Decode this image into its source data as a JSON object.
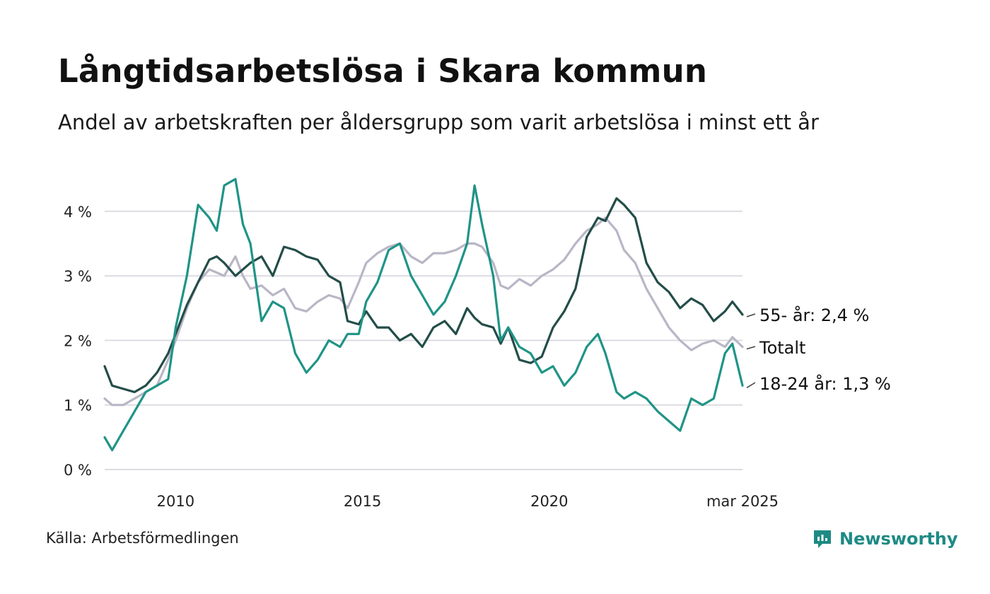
{
  "title": "Långtidsarbetslösa i Skara kommun",
  "subtitle": "Andel av arbetskraften per åldersgrupp som varit arbetslösa i minst ett år",
  "source": "Källa: Arbetsförmedlingen",
  "brand": {
    "name": "Newsworthy",
    "icon": "newsworthy-logo-icon",
    "color": "#1e8a84"
  },
  "chart_data": {
    "type": "line",
    "x_range": [
      2008.1,
      2025.17
    ],
    "ylim": [
      0,
      4.7
    ],
    "y_ticks": [
      {
        "value": 0,
        "label": "0 %"
      },
      {
        "value": 1,
        "label": "1 %"
      },
      {
        "value": 2,
        "label": "2 %"
      },
      {
        "value": 3,
        "label": "3 %"
      },
      {
        "value": 4,
        "label": "4 %"
      }
    ],
    "x_ticks": [
      {
        "value": 2010,
        "label": "2010"
      },
      {
        "value": 2015,
        "label": "2015"
      },
      {
        "value": 2020,
        "label": "2020"
      },
      {
        "value": 2025.17,
        "label": "mar 2025"
      }
    ],
    "grid": "horizontal",
    "series": [
      {
        "key": "totalt",
        "name": "Totalt",
        "color": "#b9b6c6",
        "points": [
          [
            2008.1,
            1.1
          ],
          [
            2008.3,
            1.0
          ],
          [
            2008.6,
            1.0
          ],
          [
            2008.9,
            1.1
          ],
          [
            2009.2,
            1.2
          ],
          [
            2009.5,
            1.3
          ],
          [
            2009.8,
            1.7
          ],
          [
            2010.0,
            2.0
          ],
          [
            2010.3,
            2.5
          ],
          [
            2010.6,
            2.9
          ],
          [
            2010.9,
            3.1
          ],
          [
            2011.1,
            3.05
          ],
          [
            2011.3,
            3.0
          ],
          [
            2011.6,
            3.3
          ],
          [
            2011.8,
            3.0
          ],
          [
            2012.0,
            2.8
          ],
          [
            2012.3,
            2.85
          ],
          [
            2012.6,
            2.7
          ],
          [
            2012.9,
            2.8
          ],
          [
            2013.2,
            2.5
          ],
          [
            2013.5,
            2.45
          ],
          [
            2013.8,
            2.6
          ],
          [
            2014.1,
            2.7
          ],
          [
            2014.4,
            2.65
          ],
          [
            2014.6,
            2.5
          ],
          [
            2014.9,
            2.9
          ],
          [
            2015.1,
            3.2
          ],
          [
            2015.4,
            3.35
          ],
          [
            2015.7,
            3.45
          ],
          [
            2016.0,
            3.5
          ],
          [
            2016.3,
            3.3
          ],
          [
            2016.6,
            3.2
          ],
          [
            2016.9,
            3.35
          ],
          [
            2017.2,
            3.35
          ],
          [
            2017.5,
            3.4
          ],
          [
            2017.8,
            3.5
          ],
          [
            2018.0,
            3.5
          ],
          [
            2018.2,
            3.45
          ],
          [
            2018.5,
            3.2
          ],
          [
            2018.7,
            2.85
          ],
          [
            2018.9,
            2.8
          ],
          [
            2019.2,
            2.95
          ],
          [
            2019.5,
            2.85
          ],
          [
            2019.8,
            3.0
          ],
          [
            2020.1,
            3.1
          ],
          [
            2020.4,
            3.25
          ],
          [
            2020.7,
            3.5
          ],
          [
            2021.0,
            3.7
          ],
          [
            2021.3,
            3.8
          ],
          [
            2021.5,
            3.9
          ],
          [
            2021.8,
            3.7
          ],
          [
            2022.0,
            3.4
          ],
          [
            2022.3,
            3.2
          ],
          [
            2022.6,
            2.8
          ],
          [
            2022.9,
            2.5
          ],
          [
            2023.2,
            2.2
          ],
          [
            2023.5,
            2.0
          ],
          [
            2023.8,
            1.85
          ],
          [
            2024.1,
            1.95
          ],
          [
            2024.4,
            2.0
          ],
          [
            2024.7,
            1.9
          ],
          [
            2024.9,
            2.05
          ],
          [
            2025.17,
            1.9
          ]
        ]
      },
      {
        "key": "age55",
        "name": "55- år",
        "color": "#234d48",
        "points": [
          [
            2008.1,
            1.6
          ],
          [
            2008.3,
            1.3
          ],
          [
            2008.6,
            1.25
          ],
          [
            2008.9,
            1.2
          ],
          [
            2009.2,
            1.3
          ],
          [
            2009.5,
            1.5
          ],
          [
            2009.8,
            1.8
          ],
          [
            2010.0,
            2.1
          ],
          [
            2010.3,
            2.55
          ],
          [
            2010.6,
            2.9
          ],
          [
            2010.9,
            3.25
          ],
          [
            2011.1,
            3.3
          ],
          [
            2011.3,
            3.2
          ],
          [
            2011.6,
            3.0
          ],
          [
            2011.8,
            3.1
          ],
          [
            2012.0,
            3.2
          ],
          [
            2012.3,
            3.3
          ],
          [
            2012.6,
            3.0
          ],
          [
            2012.9,
            3.45
          ],
          [
            2013.2,
            3.4
          ],
          [
            2013.5,
            3.3
          ],
          [
            2013.8,
            3.25
          ],
          [
            2014.1,
            3.0
          ],
          [
            2014.4,
            2.9
          ],
          [
            2014.6,
            2.3
          ],
          [
            2014.9,
            2.25
          ],
          [
            2015.1,
            2.45
          ],
          [
            2015.4,
            2.2
          ],
          [
            2015.7,
            2.2
          ],
          [
            2016.0,
            2.0
          ],
          [
            2016.3,
            2.1
          ],
          [
            2016.6,
            1.9
          ],
          [
            2016.9,
            2.2
          ],
          [
            2017.2,
            2.3
          ],
          [
            2017.5,
            2.1
          ],
          [
            2017.8,
            2.5
          ],
          [
            2018.0,
            2.35
          ],
          [
            2018.2,
            2.25
          ],
          [
            2018.5,
            2.2
          ],
          [
            2018.7,
            1.95
          ],
          [
            2018.9,
            2.2
          ],
          [
            2019.2,
            1.7
          ],
          [
            2019.5,
            1.65
          ],
          [
            2019.8,
            1.75
          ],
          [
            2020.1,
            2.2
          ],
          [
            2020.4,
            2.45
          ],
          [
            2020.7,
            2.8
          ],
          [
            2021.0,
            3.6
          ],
          [
            2021.3,
            3.9
          ],
          [
            2021.5,
            3.85
          ],
          [
            2021.8,
            4.2
          ],
          [
            2022.0,
            4.1
          ],
          [
            2022.3,
            3.9
          ],
          [
            2022.6,
            3.2
          ],
          [
            2022.9,
            2.9
          ],
          [
            2023.2,
            2.75
          ],
          [
            2023.5,
            2.5
          ],
          [
            2023.8,
            2.65
          ],
          [
            2024.1,
            2.55
          ],
          [
            2024.4,
            2.3
          ],
          [
            2024.7,
            2.45
          ],
          [
            2024.9,
            2.6
          ],
          [
            2025.17,
            2.4
          ]
        ]
      },
      {
        "key": "age1824",
        "name": "18-24 år",
        "color": "#1f9486",
        "points": [
          [
            2008.1,
            0.5
          ],
          [
            2008.3,
            0.3
          ],
          [
            2008.6,
            0.6
          ],
          [
            2008.9,
            0.9
          ],
          [
            2009.2,
            1.2
          ],
          [
            2009.5,
            1.3
          ],
          [
            2009.8,
            1.4
          ],
          [
            2010.0,
            2.2
          ],
          [
            2010.3,
            3.0
          ],
          [
            2010.6,
            4.1
          ],
          [
            2010.9,
            3.9
          ],
          [
            2011.1,
            3.7
          ],
          [
            2011.3,
            4.4
          ],
          [
            2011.6,
            4.5
          ],
          [
            2011.8,
            3.8
          ],
          [
            2012.0,
            3.5
          ],
          [
            2012.3,
            2.3
          ],
          [
            2012.6,
            2.6
          ],
          [
            2012.9,
            2.5
          ],
          [
            2013.2,
            1.8
          ],
          [
            2013.5,
            1.5
          ],
          [
            2013.8,
            1.7
          ],
          [
            2014.1,
            2.0
          ],
          [
            2014.4,
            1.9
          ],
          [
            2014.6,
            2.1
          ],
          [
            2014.9,
            2.1
          ],
          [
            2015.1,
            2.6
          ],
          [
            2015.4,
            2.9
          ],
          [
            2015.7,
            3.4
          ],
          [
            2016.0,
            3.5
          ],
          [
            2016.3,
            3.0
          ],
          [
            2016.6,
            2.7
          ],
          [
            2016.9,
            2.4
          ],
          [
            2017.2,
            2.6
          ],
          [
            2017.5,
            3.0
          ],
          [
            2017.8,
            3.5
          ],
          [
            2018.0,
            4.4
          ],
          [
            2018.2,
            3.8
          ],
          [
            2018.5,
            3.0
          ],
          [
            2018.7,
            2.0
          ],
          [
            2018.9,
            2.2
          ],
          [
            2019.2,
            1.9
          ],
          [
            2019.5,
            1.8
          ],
          [
            2019.8,
            1.5
          ],
          [
            2020.1,
            1.6
          ],
          [
            2020.4,
            1.3
          ],
          [
            2020.7,
            1.5
          ],
          [
            2021.0,
            1.9
          ],
          [
            2021.3,
            2.1
          ],
          [
            2021.5,
            1.8
          ],
          [
            2021.8,
            1.2
          ],
          [
            2022.0,
            1.1
          ],
          [
            2022.3,
            1.2
          ],
          [
            2022.6,
            1.1
          ],
          [
            2022.9,
            0.9
          ],
          [
            2023.2,
            0.75
          ],
          [
            2023.5,
            0.6
          ],
          [
            2023.8,
            1.1
          ],
          [
            2024.1,
            1.0
          ],
          [
            2024.4,
            1.1
          ],
          [
            2024.7,
            1.8
          ],
          [
            2024.9,
            1.95
          ],
          [
            2025.17,
            1.3
          ]
        ]
      }
    ],
    "end_labels": [
      {
        "series": "age55",
        "text": "55- år: 2,4 %"
      },
      {
        "series": "totalt",
        "text": "Totalt"
      },
      {
        "series": "age1824",
        "text": "18-24 år: 1,3 %"
      }
    ]
  }
}
